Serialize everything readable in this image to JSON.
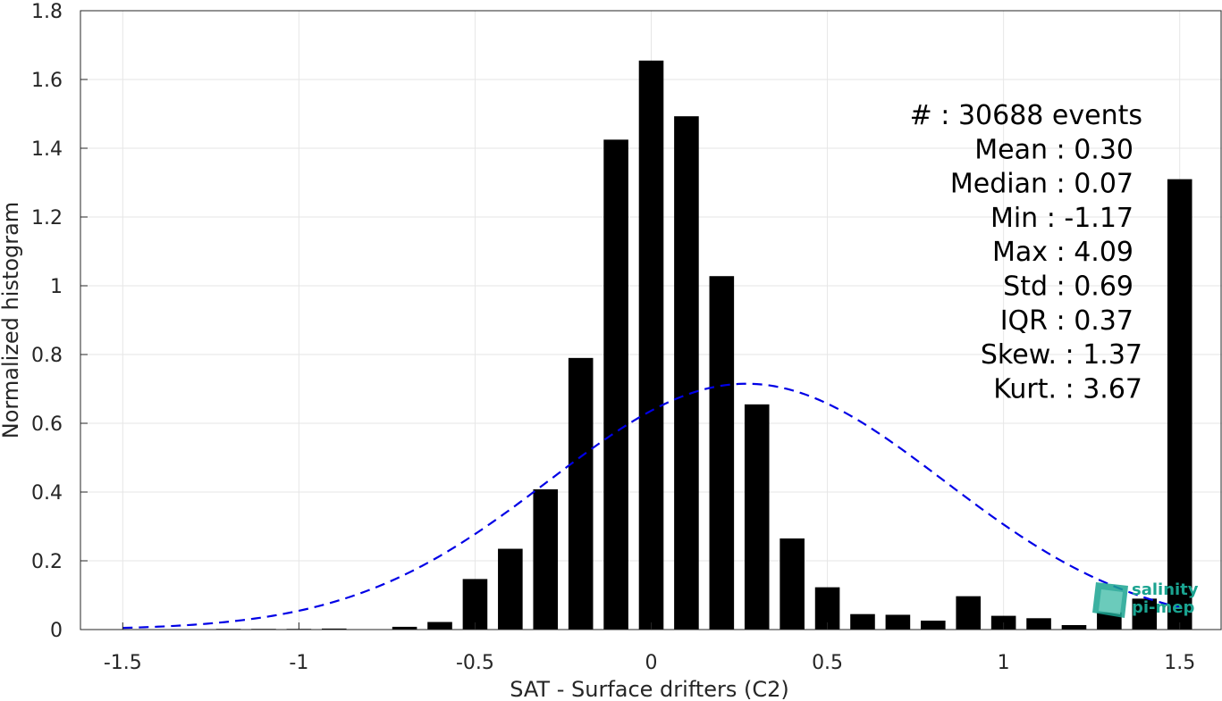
{
  "chart_data": {
    "type": "bar",
    "xlabel": "SAT - Surface drifters (C2)",
    "ylabel": "Normalized histogram",
    "xlim": [
      -1.62,
      1.62
    ],
    "ylim": [
      0,
      1.8
    ],
    "grid": true,
    "bar_width": 0.07,
    "x_ticks": [
      -1.5,
      -1,
      -0.5,
      0,
      0.5,
      1,
      1.5
    ],
    "x_tick_labels": [
      "-1.5",
      "-1",
      "-0.5",
      "0",
      "0.5",
      "1",
      "1.5"
    ],
    "y_ticks": [
      0,
      0.2,
      0.4,
      0.6,
      0.8,
      1,
      1.2,
      1.4,
      1.6,
      1.8
    ],
    "y_tick_labels": [
      "0",
      "0.2",
      "0.4",
      "0.6",
      "0.8",
      "1",
      "1.2",
      "1.4",
      "1.6",
      "1.8"
    ],
    "x": [
      -1.5,
      -1.4,
      -1.3,
      -1.2,
      -1.1,
      -1.0,
      -0.9,
      -0.8,
      -0.7,
      -0.6,
      -0.5,
      -0.4,
      -0.3,
      -0.2,
      -0.1,
      0.0,
      0.1,
      0.2,
      0.3,
      0.4,
      0.5,
      0.6,
      0.7,
      0.8,
      0.9,
      1.0,
      1.1,
      1.2,
      1.3,
      1.4,
      1.5
    ],
    "values": [
      0,
      0,
      0,
      0.002,
      0.002,
      0.002,
      0.003,
      0,
      0.008,
      0.022,
      0.147,
      0.235,
      0.408,
      0.79,
      1.425,
      1.655,
      1.493,
      1.028,
      0.655,
      0.265,
      0.123,
      0.045,
      0.043,
      0.026,
      0.097,
      0.04,
      0.033,
      0.013,
      0.05,
      0.09,
      1.31
    ],
    "fit": {
      "style": "dashed",
      "color": "#0000e6",
      "mean": 0.27,
      "std": 0.56,
      "amplitude": 0.715,
      "x_range": [
        -1.5,
        1.5
      ]
    },
    "bar_color": "#000000",
    "stats_lines": [
      "#  : 30688 events",
      "Mean : 0.30",
      "Median : 0.07",
      "Min : -1.17",
      "Max : 4.09",
      "Std : 0.69",
      "IQR : 0.37",
      "Skew. : 1.37",
      "Kurt. : 3.67"
    ],
    "logo": {
      "line1": "salinity",
      "line2": "pi-mep",
      "color": "#1aa390"
    }
  }
}
